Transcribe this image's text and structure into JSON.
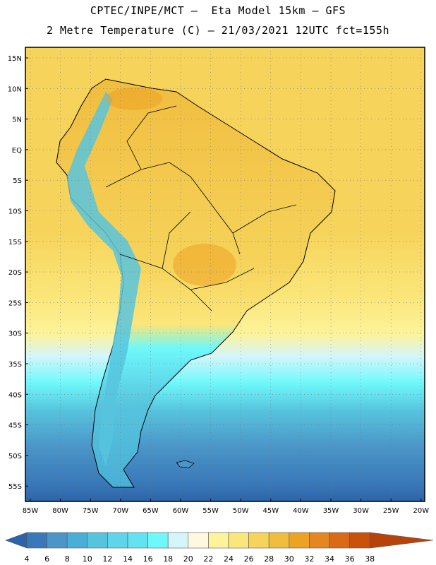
{
  "header": {
    "line1": "CPTEC/INPE/MCT –  Eta Model 15km – GFS",
    "line2": "2 Metre Temperature (C) – 21/03/2021 12UTC fct=155h"
  },
  "map": {
    "lat_labels": [
      "15N",
      "10N",
      "5N",
      "EQ",
      "5S",
      "10S",
      "15S",
      "20S",
      "25S",
      "30S",
      "35S",
      "40S",
      "45S",
      "50S",
      "55S"
    ],
    "lon_labels": [
      "85W",
      "80W",
      "75W",
      "70W",
      "65W",
      "60W",
      "55W",
      "50W",
      "45W",
      "40W",
      "35W",
      "30W",
      "25W",
      "20W"
    ]
  },
  "colorbar": {
    "labels": [
      "4",
      "6",
      "8",
      "10",
      "12",
      "14",
      "16",
      "18",
      "20",
      "22",
      "24",
      "26",
      "28",
      "30",
      "32",
      "34",
      "36",
      "38"
    ],
    "colors": [
      "#2d63a8",
      "#3979b9",
      "#4b95c8",
      "#4aafd6",
      "#57c4de",
      "#5ed5e8",
      "#63e2ef",
      "#6ef8fb",
      "#d4f6fb",
      "#fff7e0",
      "#fdf39a",
      "#fbe67a",
      "#f6d35a",
      "#f0bd3f",
      "#eca222",
      "#e58720",
      "#da6a15",
      "#c9510b",
      "#b8430a"
    ]
  }
}
